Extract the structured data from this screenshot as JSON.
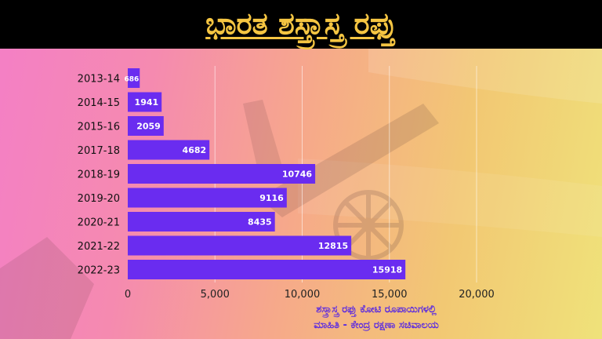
{
  "header": {
    "title": "ಭಾರತ ಶಸ್ತ್ರಾಸ್ತ್ರ ರಫ್ತು"
  },
  "footnote": {
    "line1": "ಶಸ್ತ್ರಾಸ್ತ್ರ ರಫ್ತು ಕೋಟಿ ರೂಪಾಯಿಗಳಲ್ಲಿ",
    "line2": "ಮಾಹಿತಿ - ಕೇಂದ್ರ ರಕ್ಷಣಾ ಸಚಿವಾಲಯ"
  },
  "colors": {
    "bar": "#6a2cf0",
    "title": "#f5c542",
    "footnote": "#5b2be0",
    "header_bg": "#000000"
  },
  "chart_data": {
    "type": "bar",
    "orientation": "horizontal",
    "title": "ಭಾರತ ಶಸ್ತ್ರಾಸ್ತ್ರ ರಫ್ತು",
    "xlabel": "",
    "ylabel": "",
    "categories": [
      "2013-14",
      "2014-15",
      "2015-16",
      "2017-18",
      "2018-19",
      "2019-20",
      "2020-21",
      "2021-22",
      "2022-23"
    ],
    "values": [
      686,
      1941,
      2059,
      4682,
      10746,
      9116,
      8435,
      12815,
      15918
    ],
    "value_labels": [
      "686",
      "1941",
      "2059",
      "4682",
      "10746",
      "9116",
      "8435",
      "12815",
      "15918"
    ],
    "xlim": [
      0,
      20000
    ],
    "x_ticks": [
      0,
      5000,
      10000,
      15000,
      20000
    ],
    "x_tick_labels": [
      "0",
      "5,000",
      "10,000",
      "15,000",
      "20,000"
    ],
    "grid": true,
    "legend": "none"
  }
}
